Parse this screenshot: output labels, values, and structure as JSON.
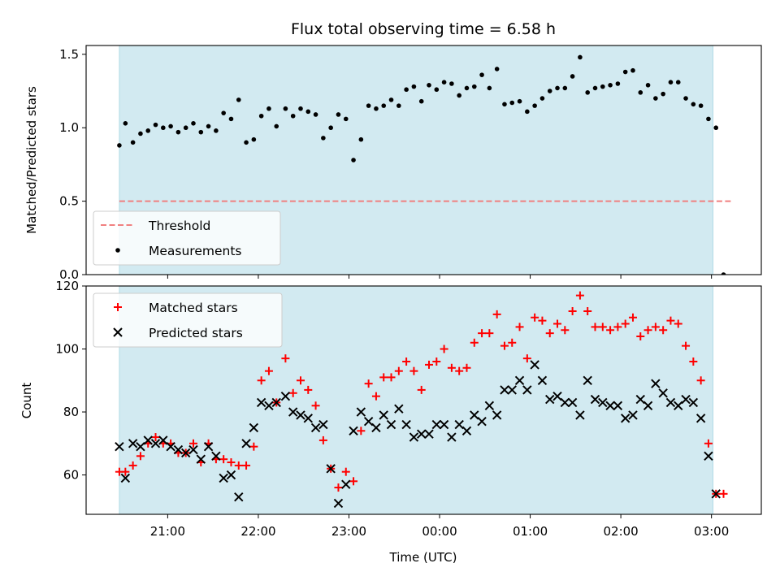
{
  "chart_data": [
    {
      "type": "scatter",
      "title": "Flux total observing time = 6.58 h",
      "xlabel": "",
      "ylabel": "Matched/Predicted stars",
      "ylim": [
        0,
        1.56
      ],
      "yticks": [
        0.0,
        0.5,
        1.0,
        1.5
      ],
      "ytick_labels": [
        "0.0",
        "0.5",
        "1.0",
        "1.5"
      ],
      "legend_position": "lower-left",
      "shaded_span": {
        "start": "20:28",
        "end": "03:01",
        "color": "#add8e6"
      },
      "threshold": {
        "name": "Threshold",
        "value": 0.5,
        "color": "#f08080"
      },
      "series": [
        {
          "name": "Measurements",
          "color": "#000000",
          "points": [
            [
              "20:28",
              0.88
            ],
            [
              "20:32",
              1.03
            ],
            [
              "20:37",
              0.9
            ],
            [
              "20:42",
              0.96
            ],
            [
              "20:47",
              0.98
            ],
            [
              "20:52",
              1.02
            ],
            [
              "20:57",
              1.0
            ],
            [
              "21:02",
              1.01
            ],
            [
              "21:07",
              0.97
            ],
            [
              "21:12",
              1.0
            ],
            [
              "21:17",
              1.03
            ],
            [
              "21:22",
              0.97
            ],
            [
              "21:27",
              1.01
            ],
            [
              "21:32",
              0.98
            ],
            [
              "21:37",
              1.1
            ],
            [
              "21:42",
              1.06
            ],
            [
              "21:47",
              1.19
            ],
            [
              "21:52",
              0.9
            ],
            [
              "21:57",
              0.92
            ],
            [
              "22:02",
              1.08
            ],
            [
              "22:07",
              1.13
            ],
            [
              "22:12",
              1.01
            ],
            [
              "22:18",
              1.13
            ],
            [
              "22:23",
              1.08
            ],
            [
              "22:28",
              1.13
            ],
            [
              "22:33",
              1.11
            ],
            [
              "22:38",
              1.09
            ],
            [
              "22:43",
              0.93
            ],
            [
              "22:48",
              1.0
            ],
            [
              "22:53",
              1.09
            ],
            [
              "22:58",
              1.06
            ],
            [
              "23:03",
              0.78
            ],
            [
              "23:08",
              0.92
            ],
            [
              "23:13",
              1.15
            ],
            [
              "23:18",
              1.13
            ],
            [
              "23:23",
              1.15
            ],
            [
              "23:28",
              1.19
            ],
            [
              "23:33",
              1.15
            ],
            [
              "23:38",
              1.26
            ],
            [
              "23:43",
              1.28
            ],
            [
              "23:48",
              1.18
            ],
            [
              "23:53",
              1.29
            ],
            [
              "23:58",
              1.26
            ],
            [
              "00:03",
              1.31
            ],
            [
              "00:08",
              1.3
            ],
            [
              "00:13",
              1.22
            ],
            [
              "00:18",
              1.27
            ],
            [
              "00:23",
              1.28
            ],
            [
              "00:28",
              1.36
            ],
            [
              "00:33",
              1.27
            ],
            [
              "00:38",
              1.4
            ],
            [
              "00:43",
              1.16
            ],
            [
              "00:48",
              1.17
            ],
            [
              "00:53",
              1.18
            ],
            [
              "00:58",
              1.11
            ],
            [
              "01:03",
              1.15
            ],
            [
              "01:08",
              1.2
            ],
            [
              "01:13",
              1.25
            ],
            [
              "01:18",
              1.27
            ],
            [
              "01:23",
              1.27
            ],
            [
              "01:28",
              1.35
            ],
            [
              "01:33",
              1.48
            ],
            [
              "01:38",
              1.24
            ],
            [
              "01:43",
              1.27
            ],
            [
              "01:48",
              1.28
            ],
            [
              "01:53",
              1.29
            ],
            [
              "01:58",
              1.3
            ],
            [
              "02:03",
              1.38
            ],
            [
              "02:08",
              1.39
            ],
            [
              "02:13",
              1.24
            ],
            [
              "02:18",
              1.29
            ],
            [
              "02:23",
              1.2
            ],
            [
              "02:28",
              1.23
            ],
            [
              "02:33",
              1.31
            ],
            [
              "02:38",
              1.31
            ],
            [
              "02:43",
              1.2
            ],
            [
              "02:48",
              1.16
            ],
            [
              "02:53",
              1.15
            ],
            [
              "02:58",
              1.06
            ],
            [
              "03:03",
              1.0
            ],
            [
              "03:08",
              0.0
            ]
          ]
        }
      ]
    },
    {
      "type": "scatter",
      "title": "",
      "xlabel": "Time (UTC)",
      "ylabel": "Count",
      "ylim": [
        47.5,
        120
      ],
      "yticks": [
        60,
        80,
        100,
        120
      ],
      "ytick_labels": [
        "60",
        "80",
        "100",
        "120"
      ],
      "xlim": [
        "20:06",
        "03:33"
      ],
      "xticks": [
        "21:00",
        "22:00",
        "23:00",
        "00:00",
        "01:00",
        "02:00",
        "03:00"
      ],
      "xtick_labels": [
        "21:00",
        "22:00",
        "23:00",
        "00:00",
        "01:00",
        "02:00",
        "03:00"
      ],
      "legend_position": "upper-left",
      "shaded_span": {
        "start": "20:28",
        "end": "03:01",
        "color": "#add8e6"
      },
      "series": [
        {
          "name": "Matched stars",
          "marker": "plus",
          "color": "#ff0000",
          "points": [
            [
              "20:28",
              61
            ],
            [
              "20:32",
              61
            ],
            [
              "20:37",
              63
            ],
            [
              "20:42",
              66
            ],
            [
              "20:47",
              70
            ],
            [
              "20:52",
              72
            ],
            [
              "20:57",
              70
            ],
            [
              "21:02",
              70
            ],
            [
              "21:07",
              67
            ],
            [
              "21:12",
              67
            ],
            [
              "21:17",
              70
            ],
            [
              "21:22",
              64
            ],
            [
              "21:27",
              70
            ],
            [
              "21:32",
              65
            ],
            [
              "21:37",
              65
            ],
            [
              "21:42",
              64
            ],
            [
              "21:47",
              63
            ],
            [
              "21:52",
              63
            ],
            [
              "21:57",
              69
            ],
            [
              "22:02",
              90
            ],
            [
              "22:07",
              93
            ],
            [
              "22:12",
              83
            ],
            [
              "22:18",
              97
            ],
            [
              "22:23",
              86
            ],
            [
              "22:28",
              90
            ],
            [
              "22:33",
              87
            ],
            [
              "22:38",
              82
            ],
            [
              "22:43",
              71
            ],
            [
              "22:48",
              62
            ],
            [
              "22:53",
              56
            ],
            [
              "22:58",
              61
            ],
            [
              "23:03",
              58
            ],
            [
              "23:08",
              74
            ],
            [
              "23:13",
              89
            ],
            [
              "23:18",
              85
            ],
            [
              "23:23",
              91
            ],
            [
              "23:28",
              91
            ],
            [
              "23:33",
              93
            ],
            [
              "23:38",
              96
            ],
            [
              "23:43",
              93
            ],
            [
              "23:48",
              87
            ],
            [
              "23:53",
              95
            ],
            [
              "23:58",
              96
            ],
            [
              "00:03",
              100
            ],
            [
              "00:08",
              94
            ],
            [
              "00:13",
              93
            ],
            [
              "00:18",
              94
            ],
            [
              "00:23",
              102
            ],
            [
              "00:28",
              105
            ],
            [
              "00:33",
              105
            ],
            [
              "00:38",
              111
            ],
            [
              "00:43",
              101
            ],
            [
              "00:48",
              102
            ],
            [
              "00:53",
              107
            ],
            [
              "00:58",
              97
            ],
            [
              "01:03",
              110
            ],
            [
              "01:08",
              109
            ],
            [
              "01:13",
              105
            ],
            [
              "01:18",
              108
            ],
            [
              "01:23",
              106
            ],
            [
              "01:28",
              112
            ],
            [
              "01:33",
              117
            ],
            [
              "01:38",
              112
            ],
            [
              "01:43",
              107
            ],
            [
              "01:48",
              107
            ],
            [
              "01:53",
              106
            ],
            [
              "01:58",
              107
            ],
            [
              "02:03",
              108
            ],
            [
              "02:08",
              110
            ],
            [
              "02:13",
              104
            ],
            [
              "02:18",
              106
            ],
            [
              "02:23",
              107
            ],
            [
              "02:28",
              106
            ],
            [
              "02:33",
              109
            ],
            [
              "02:38",
              108
            ],
            [
              "02:43",
              101
            ],
            [
              "02:48",
              96
            ],
            [
              "02:53",
              90
            ],
            [
              "02:58",
              70
            ],
            [
              "03:03",
              54
            ],
            [
              "03:08",
              54
            ]
          ]
        },
        {
          "name": "Predicted stars",
          "marker": "x",
          "color": "#000000",
          "points": [
            [
              "20:28",
              69
            ],
            [
              "20:32",
              59
            ],
            [
              "20:37",
              70
            ],
            [
              "20:42",
              69
            ],
            [
              "20:47",
              71
            ],
            [
              "20:52",
              70
            ],
            [
              "20:57",
              71
            ],
            [
              "21:02",
              69
            ],
            [
              "21:07",
              68
            ],
            [
              "21:12",
              67
            ],
            [
              "21:17",
              68
            ],
            [
              "21:22",
              65
            ],
            [
              "21:27",
              69
            ],
            [
              "21:32",
              66
            ],
            [
              "21:37",
              59
            ],
            [
              "21:42",
              60
            ],
            [
              "21:47",
              53
            ],
            [
              "21:52",
              70
            ],
            [
              "21:57",
              75
            ],
            [
              "22:02",
              83
            ],
            [
              "22:07",
              82
            ],
            [
              "22:12",
              83
            ],
            [
              "22:18",
              85
            ],
            [
              "22:23",
              80
            ],
            [
              "22:28",
              79
            ],
            [
              "22:33",
              78
            ],
            [
              "22:38",
              75
            ],
            [
              "22:43",
              76
            ],
            [
              "22:48",
              62
            ],
            [
              "22:53",
              51
            ],
            [
              "22:58",
              57
            ],
            [
              "23:03",
              74
            ],
            [
              "23:08",
              80
            ],
            [
              "23:13",
              77
            ],
            [
              "23:18",
              75
            ],
            [
              "23:23",
              79
            ],
            [
              "23:28",
              76
            ],
            [
              "23:33",
              81
            ],
            [
              "23:38",
              76
            ],
            [
              "23:43",
              72
            ],
            [
              "23:48",
              73
            ],
            [
              "23:53",
              73
            ],
            [
              "23:58",
              76
            ],
            [
              "00:03",
              76
            ],
            [
              "00:08",
              72
            ],
            [
              "00:13",
              76
            ],
            [
              "00:18",
              74
            ],
            [
              "00:23",
              79
            ],
            [
              "00:28",
              77
            ],
            [
              "00:33",
              82
            ],
            [
              "00:38",
              79
            ],
            [
              "00:43",
              87
            ],
            [
              "00:48",
              87
            ],
            [
              "00:53",
              90
            ],
            [
              "00:58",
              87
            ],
            [
              "01:03",
              95
            ],
            [
              "01:08",
              90
            ],
            [
              "01:13",
              84
            ],
            [
              "01:18",
              85
            ],
            [
              "01:23",
              83
            ],
            [
              "01:28",
              83
            ],
            [
              "01:33",
              79
            ],
            [
              "01:38",
              90
            ],
            [
              "01:43",
              84
            ],
            [
              "01:48",
              83
            ],
            [
              "01:53",
              82
            ],
            [
              "01:58",
              82
            ],
            [
              "02:03",
              78
            ],
            [
              "02:08",
              79
            ],
            [
              "02:13",
              84
            ],
            [
              "02:18",
              82
            ],
            [
              "02:23",
              89
            ],
            [
              "02:28",
              86
            ],
            [
              "02:33",
              83
            ],
            [
              "02:38",
              82
            ],
            [
              "02:43",
              84
            ],
            [
              "02:48",
              83
            ],
            [
              "02:53",
              78
            ],
            [
              "02:58",
              66
            ],
            [
              "03:03",
              54
            ]
          ]
        }
      ]
    }
  ]
}
